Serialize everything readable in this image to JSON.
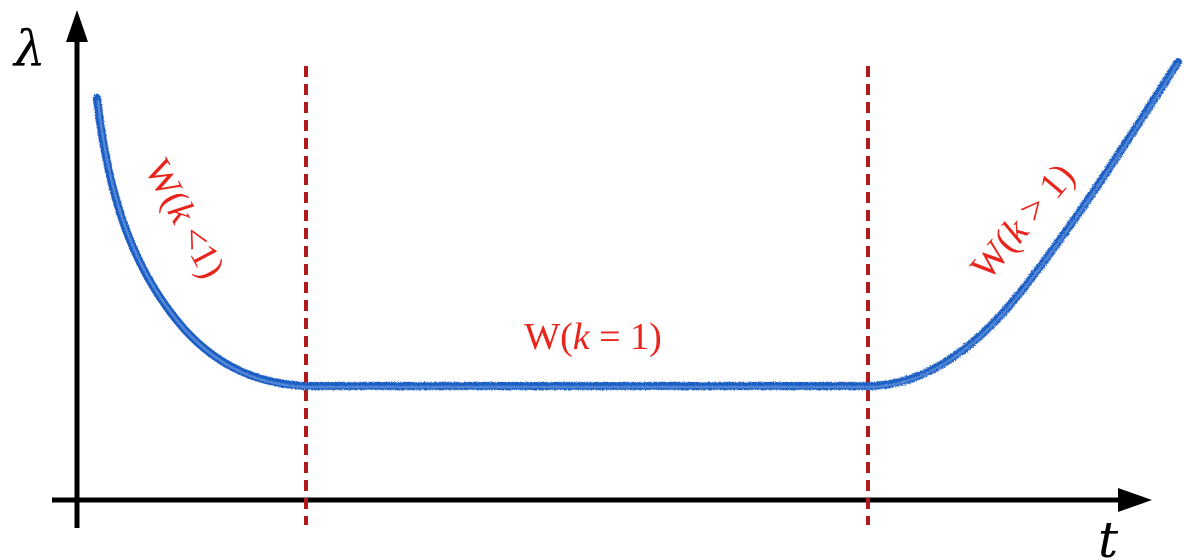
{
  "axes": {
    "y_label": "λ",
    "x_label": "t"
  },
  "regions": [
    {
      "prefix": "W(",
      "var": "k",
      "rest": " <1)"
    },
    {
      "prefix": "W(",
      "var": "k",
      "rest": " = 1)"
    },
    {
      "prefix": "W(",
      "var": "k",
      "rest": " > 1)"
    }
  ],
  "colors": {
    "curve": "#1f5fc4",
    "labels": "#e8241c",
    "dividers": "#b01a1a",
    "axes": "#000000"
  }
}
